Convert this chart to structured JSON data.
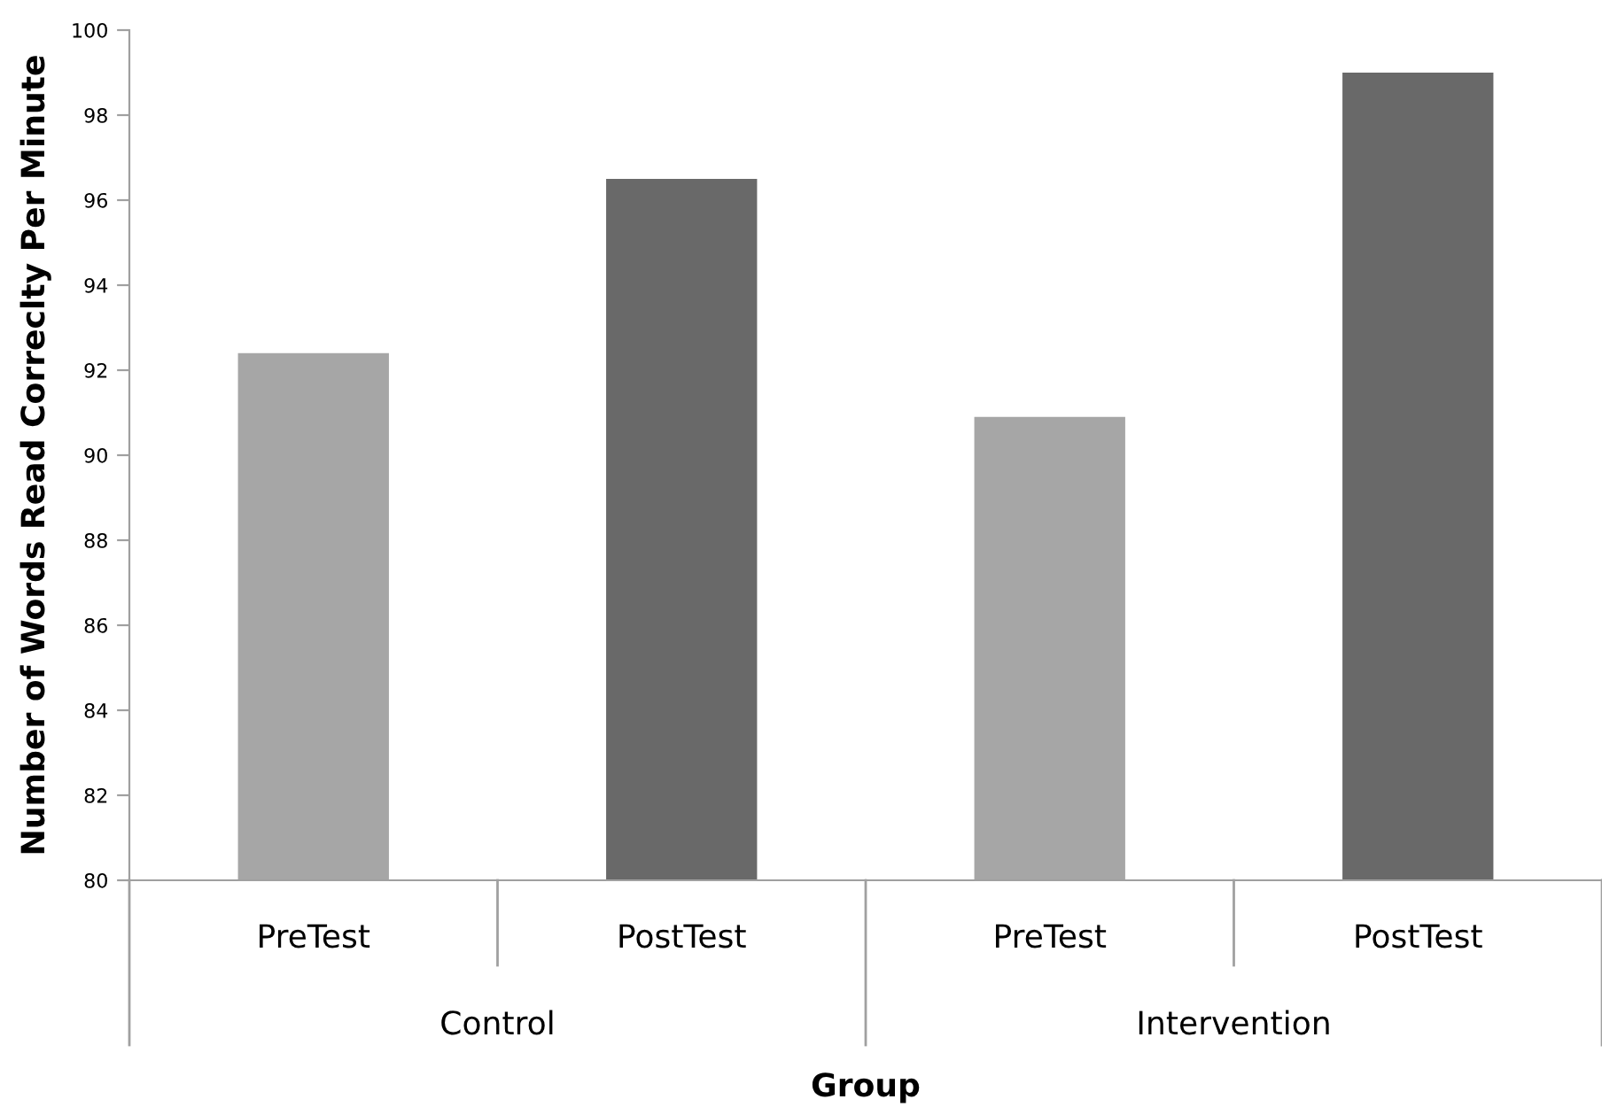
{
  "chart_data": {
    "type": "bar",
    "categories": [
      "PreTest",
      "PostTest",
      "PreTest",
      "PostTest"
    ],
    "values": [
      92.4,
      96.5,
      90.9,
      99.0
    ],
    "colors": [
      "#a6a6a6",
      "#696969",
      "#a6a6a6",
      "#696969"
    ],
    "ylim": [
      80,
      100
    ],
    "yticks": [
      80,
      82,
      84,
      86,
      88,
      90,
      92,
      94,
      96,
      98,
      100
    ],
    "xlabel": "Group",
    "ylabel": "Number of Words Read Correclty Per Minute",
    "annotations": [
      "Control",
      "Intervention"
    ],
    "grid": false,
    "legend": false
  }
}
